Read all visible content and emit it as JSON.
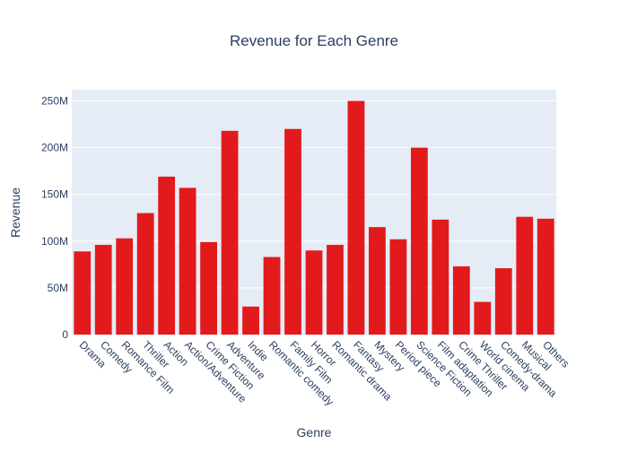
{
  "chart_data": {
    "type": "bar",
    "title": "Revenue for Each Genre",
    "xlabel": "Genre",
    "ylabel": "Revenue",
    "ylim": [
      0,
      262000000
    ],
    "y_ticks": [
      0,
      50000000,
      100000000,
      150000000,
      200000000,
      250000000
    ],
    "y_tick_labels": [
      "0",
      "50M",
      "100M",
      "150M",
      "200M",
      "250M"
    ],
    "grid": true,
    "categories": [
      "Drama",
      "Comedy",
      "Romance Film",
      "Thriller",
      "Action",
      "Action/Adventure",
      "Crime Fiction",
      "Adventure",
      "Indie",
      "Romantic comedy",
      "Family Film",
      "Horror",
      "Romantic drama",
      "Fantasy",
      "Mystery",
      "Period piece",
      "Science Fiction",
      "Film adaptation",
      "Crime Thriller",
      "World cinema",
      "Comedy-drama",
      "Musical",
      "Others"
    ],
    "values": [
      89000000,
      96000000,
      103000000,
      130000000,
      169000000,
      157000000,
      99000000,
      218000000,
      30000000,
      83000000,
      220000000,
      90000000,
      96000000,
      250000000,
      115000000,
      102000000,
      200000000,
      123000000,
      73000000,
      35000000,
      71000000,
      126000000,
      124000000
    ],
    "colors": {
      "bar": "#e31a1c",
      "plot_bg": "#e5ecf6",
      "grid": "#ffffff",
      "text": "#2a3f5f"
    }
  }
}
